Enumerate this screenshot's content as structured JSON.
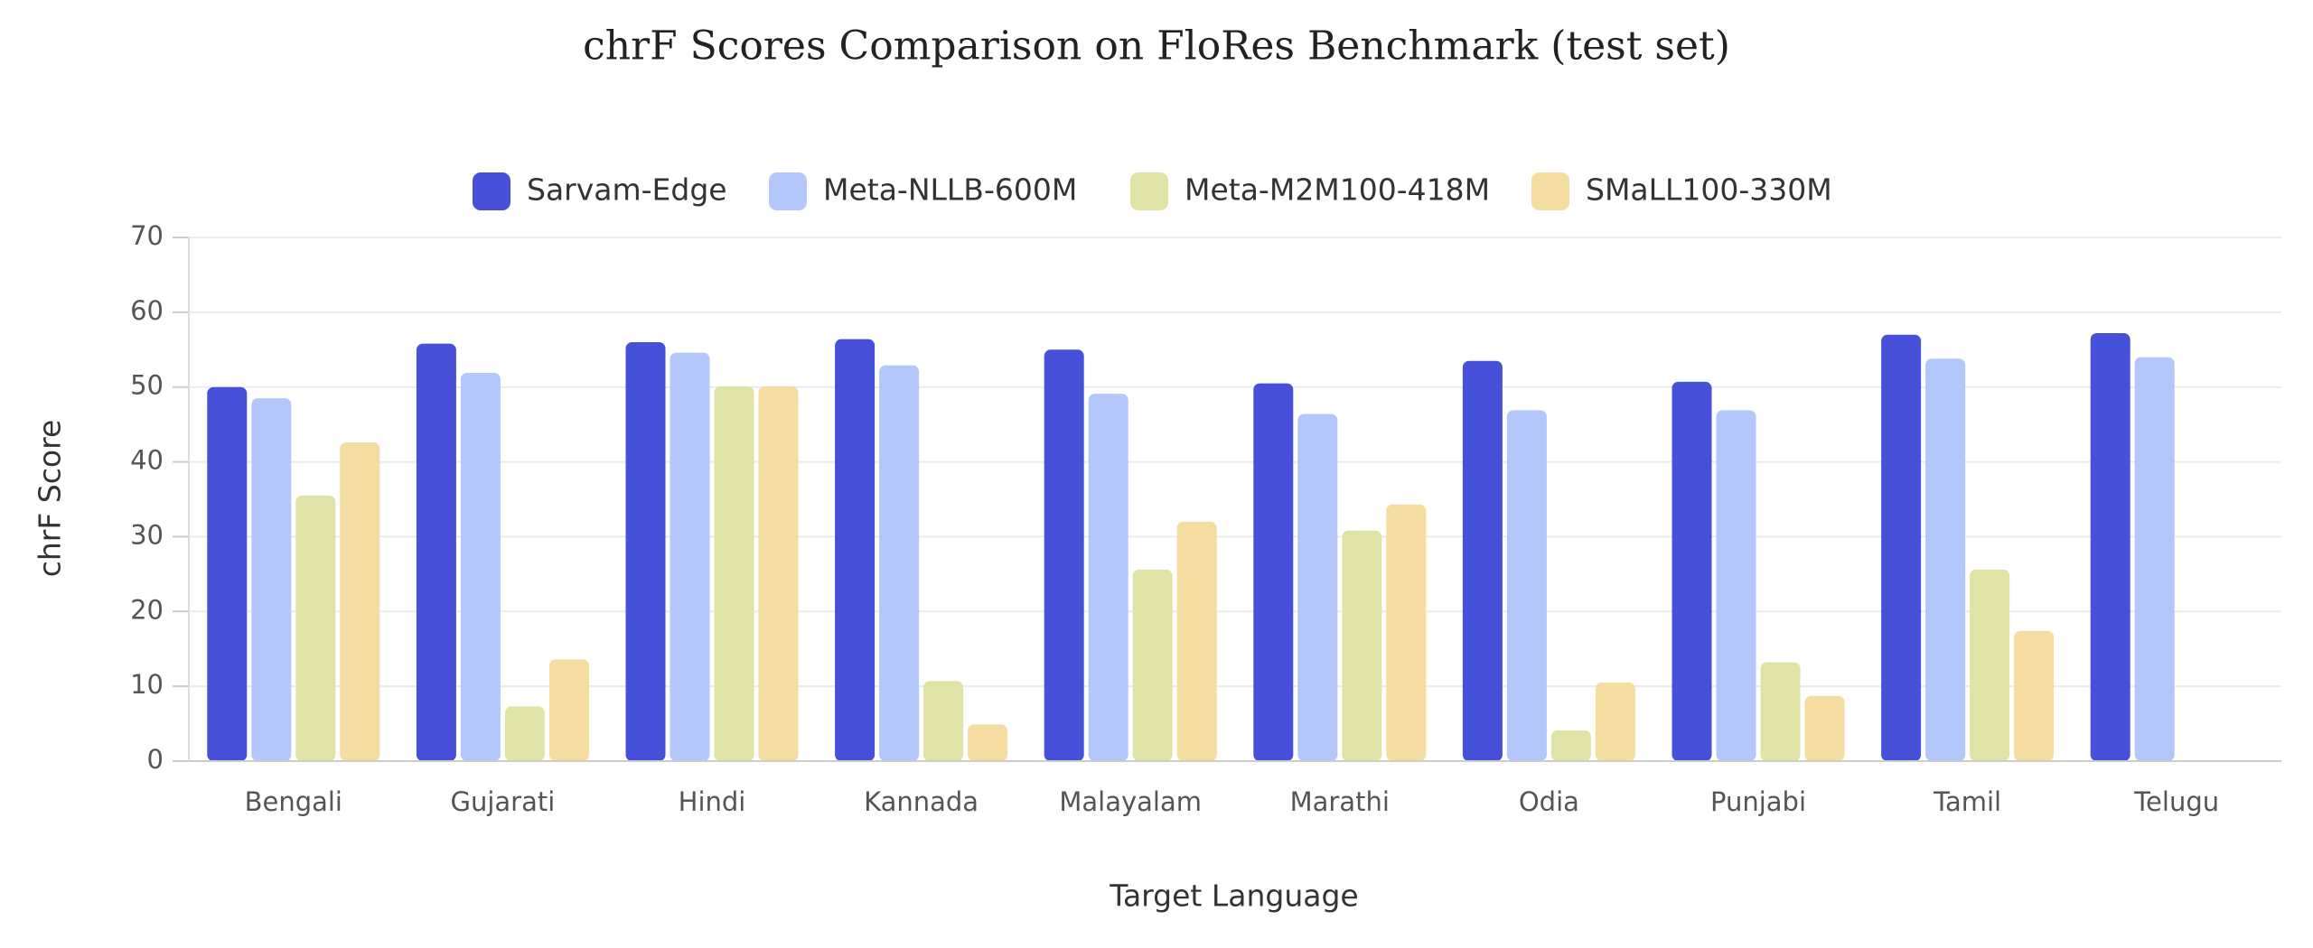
{
  "chart_data": {
    "type": "bar",
    "title": "chrF Scores Comparison on FloRes Benchmark (test set)",
    "x_label": "Target Language",
    "y_label": "chrF Score",
    "categories": [
      "Bengali",
      "Gujarati",
      "Hindi",
      "Kannada",
      "Malayalam",
      "Marathi",
      "Odia",
      "Punjabi",
      "Tamil",
      "Telugu"
    ],
    "series": [
      {
        "name": "Sarvam-Edge",
        "color": "#4650d9",
        "values": [
          50,
          55.8,
          56,
          56.4,
          55,
          50.5,
          53.5,
          50.7,
          57,
          57.2
        ]
      },
      {
        "name": "Meta-NLLB-600M",
        "color": "#b3c7fb",
        "values": [
          48.5,
          51.9,
          54.6,
          52.9,
          49.1,
          46.4,
          46.9,
          46.9,
          53.8,
          54
        ]
      },
      {
        "name": "Meta-M2M100-418M",
        "color": "#e0e3a6",
        "values": [
          35.5,
          7.3,
          50.1,
          10.7,
          25.6,
          30.8,
          4.1,
          13.2,
          25.6,
          null
        ]
      },
      {
        "name": "SMaLL100-330M",
        "color": "#f5dca0",
        "values": [
          42.6,
          13.6,
          50.1,
          4.9,
          32,
          34.3,
          10.5,
          8.7,
          17.4,
          null
        ]
      }
    ],
    "ylim": [
      0,
      70
    ],
    "yticks": [
      0,
      10,
      20,
      30,
      40,
      50,
      60,
      70
    ],
    "grid": true,
    "legend": "top"
  }
}
